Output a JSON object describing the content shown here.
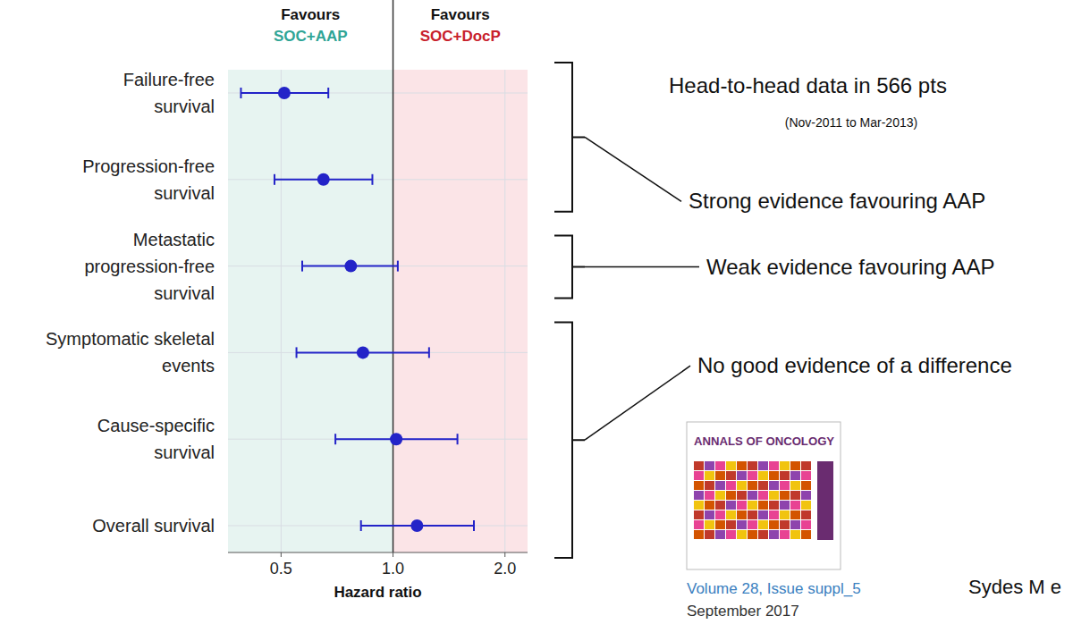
{
  "chart_data": {
    "type": "forest",
    "categories": [
      "Failure-free survival",
      "Progression-free survival",
      "Metastatic progression-free survival",
      "Symptomatic skeletal events",
      "Cause-specific survival",
      "Overall survival"
    ],
    "values": [
      0.51,
      0.65,
      0.77,
      0.83,
      1.02,
      1.16
    ],
    "ci_lower": [
      0.39,
      0.48,
      0.57,
      0.55,
      0.7,
      0.82
    ],
    "ci_upper": [
      0.67,
      0.88,
      1.03,
      1.25,
      1.49,
      1.65
    ],
    "color": "#2323c8",
    "x_label": "Hazard ratio",
    "xlim": [
      0.36,
      2.3
    ],
    "xticks": [
      0.5,
      {
        "value": 1,
        "label": "1.0"
      },
      {
        "value": 2,
        "label": "2.0"
      }
    ],
    "log": "x",
    "grid": true,
    "favours_left": {
      "text": "Favours",
      "group": "SOC+AAP"
    },
    "favours_right": {
      "text": "Favours",
      "group": "SOC+DocP"
    },
    "annotations": {
      "head_to_head": "Head-to-head data in 566 pts",
      "period": "(Nov-2011 to Mar-2013)",
      "journal": "ANNALS OF ONCOLOGY",
      "volume": "Volume 28, Issue suppl_5",
      "date": "September 2017",
      "citation": "Sydes M e"
    },
    "groups": [
      {
        "label": "Strong evidence favouring AAP",
        "rows": [
          0,
          1
        ]
      },
      {
        "label": "Weak evidence favouring AAP",
        "rows": [
          2
        ]
      },
      {
        "label": "No good evidence of a difference",
        "rows": [
          3,
          4,
          5
        ]
      }
    ]
  }
}
